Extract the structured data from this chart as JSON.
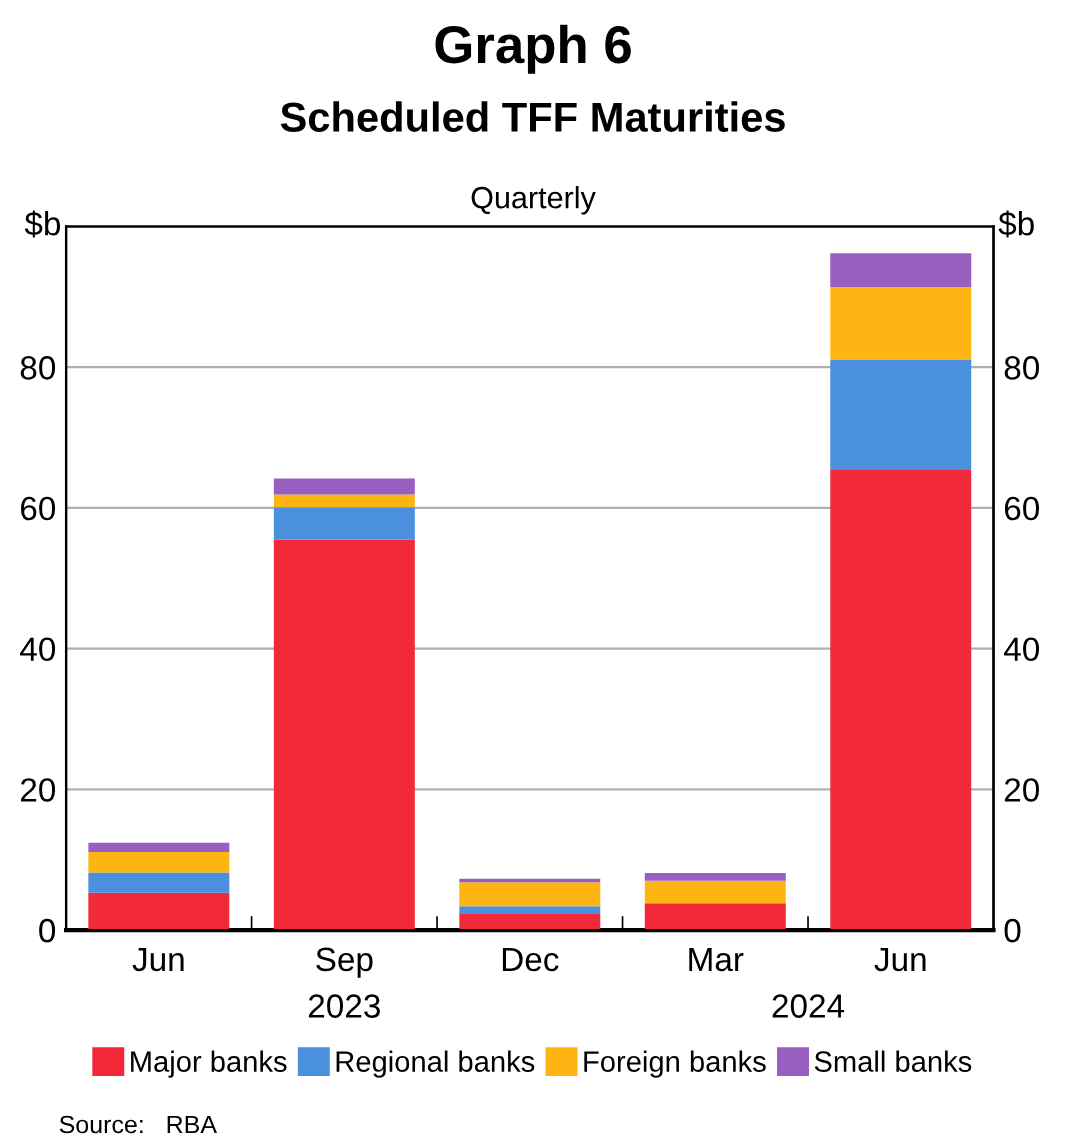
{
  "chart_data": {
    "type": "bar",
    "stacked": true,
    "title": "Scheduled TFF Maturities",
    "subtitle": "Quarterly",
    "ylabel": "$b",
    "y2label": "$b",
    "categories": [
      "Jun",
      "Sep",
      "Dec",
      "Mar",
      "Jun"
    ],
    "series": [
      {
        "name": "Major banks",
        "color": "#f12938",
        "values": [
          5.3,
          55.5,
          2.4,
          3.8,
          65.4
        ]
      },
      {
        "name": "Regional banks",
        "color": "#4a90dd",
        "values": [
          2.9,
          4.6,
          1.0,
          null,
          15.7
        ]
      },
      {
        "name": "Foreign banks",
        "color": "#feb514",
        "values": [
          2.9,
          1.8,
          3.4,
          3.2,
          10.3
        ]
      },
      {
        "name": "Small banks",
        "color": "#985ec0",
        "values": [
          1.3,
          2.3,
          0.5,
          1.1,
          4.8
        ]
      }
    ],
    "ylim": [
      0,
      100
    ],
    "yticks": [
      0,
      20,
      40,
      60,
      80
    ],
    "y2lim": [
      0,
      100
    ],
    "y2ticks": [
      0,
      20,
      40,
      60,
      80
    ],
    "grid": "y",
    "legend": "bottom",
    "annotations": [
      "Graph 6",
      "2023",
      "2024",
      "Source:   RBA"
    ]
  }
}
